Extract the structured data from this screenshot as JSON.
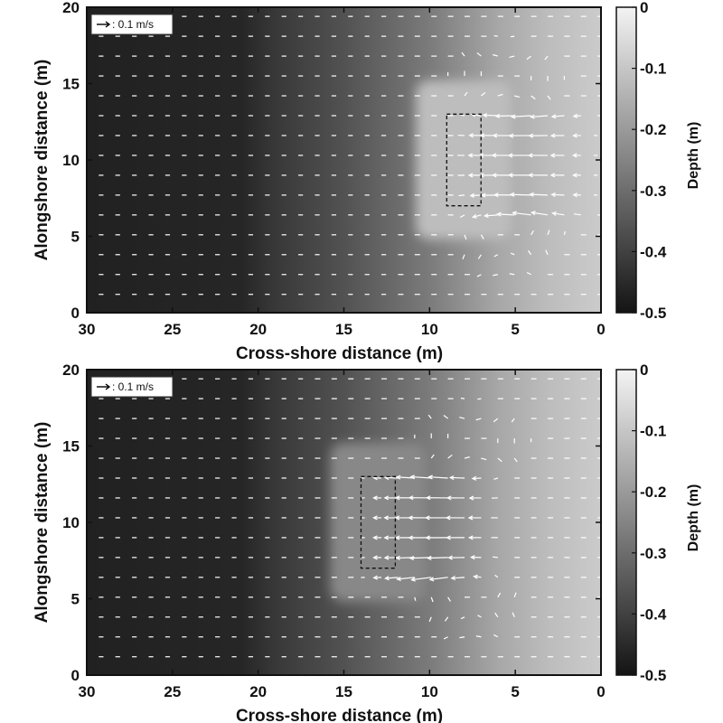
{
  "chart_data": [
    {
      "type": "quiver",
      "panel": "top",
      "xlabel": "Cross-shore distance (m)",
      "ylabel": "Alongshore distance (m)",
      "xlim": [
        30,
        0
      ],
      "ylim": [
        0,
        20
      ],
      "xticks": [
        30,
        25,
        20,
        15,
        10,
        5,
        0
      ],
      "yticks": [
        0,
        5,
        10,
        15,
        20
      ],
      "colorbar": {
        "label": "Depth (m)",
        "range": [
          -0.5,
          0
        ],
        "ticks": [
          0,
          -0.1,
          -0.2,
          -0.3,
          -0.4,
          -0.5
        ],
        "colormap": "gray"
      },
      "reference_vector": {
        "text": ": 0.1 m/s",
        "magnitude": 0.1
      },
      "structure": {
        "x_range": [
          7,
          9
        ],
        "y_range": [
          7,
          13
        ],
        "style": "dashed",
        "shallow_patch_depth": -0.12
      },
      "background": "depth increasing offshore, shallow (light) near x=0, deep (dark) beyond x=20",
      "vector_field": "near-zero offshore; strong onshore jets over the structure with recirculation cells north and south, centered near y=15.5 and y=4.5",
      "circulation_center_x": 5.5
    },
    {
      "type": "quiver",
      "panel": "bottom",
      "xlabel": "Cross-shore distance (m)",
      "ylabel": "Alongshore distance (m)",
      "xlim": [
        30,
        0
      ],
      "ylim": [
        0,
        20
      ],
      "xticks": [
        30,
        25,
        20,
        15,
        10,
        5,
        0
      ],
      "yticks": [
        0,
        5,
        10,
        15,
        20
      ],
      "colorbar": {
        "label": "Depth (m)",
        "range": [
          -0.5,
          0
        ],
        "ticks": [
          0,
          -0.1,
          -0.2,
          -0.3,
          -0.4,
          -0.5
        ],
        "colormap": "gray"
      },
      "reference_vector": {
        "text": ": 0.1 m/s",
        "magnitude": 0.1
      },
      "structure": {
        "x_range": [
          12,
          14
        ],
        "y_range": [
          7,
          13
        ],
        "style": "dashed",
        "shallow_patch_depth": -0.24
      },
      "background": "depth increasing offshore, shallow (light) near x=0, deep (dark) beyond x=20",
      "vector_field": "near-zero offshore; onshore jets leeward of the structure with recirculation cells north and south, centered near y=15.5 and y=4.5",
      "circulation_center_x": 7.5
    }
  ]
}
